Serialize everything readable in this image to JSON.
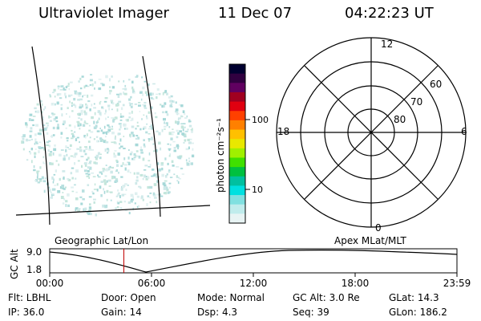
{
  "header": {
    "title": "Ultraviolet Imager",
    "date": "11 Dec 07",
    "time": "04:22:23 UT"
  },
  "colorbar": {
    "label": "photon cm⁻²s⁻¹",
    "ticks": [
      "100",
      "10"
    ],
    "colors": [
      "#000030",
      "#300040",
      "#600060",
      "#a00020",
      "#e00010",
      "#ff4000",
      "#ff8000",
      "#ffc000",
      "#e8e800",
      "#a0f000",
      "#40e000",
      "#00c040",
      "#00c0a0",
      "#00e0e0",
      "#80e0e0",
      "#c0ecec",
      "#e8f4f4"
    ]
  },
  "polar_plot": {
    "mlt_labels": {
      "top": "12",
      "bottom": "0",
      "left": "18",
      "right": "6"
    },
    "lat_labels": [
      "60",
      "70",
      "80"
    ]
  },
  "map_labels": {
    "left": "Geographic Lat/Lon",
    "right": "Apex MLat/MLT"
  },
  "altitude_strip": {
    "ylabel": "GC Alt",
    "y_ticks": [
      "9.0",
      "1.8"
    ],
    "x_ticks": [
      "00:00",
      "06:00",
      "12:00",
      "18:00",
      "23:59"
    ],
    "current_time_marker_hours": 4.37
  },
  "info": {
    "row1": [
      {
        "key": "flt",
        "text": "Flt: LBHL"
      },
      {
        "key": "door",
        "text": "Door: Open"
      },
      {
        "key": "mode",
        "text": "Mode: Normal"
      },
      {
        "key": "gcalt",
        "text": "GC Alt: 3.0 Re"
      },
      {
        "key": "glat",
        "text": "GLat:  14.3"
      }
    ],
    "row2": [
      {
        "key": "ip",
        "text": "IP: 36.0"
      },
      {
        "key": "gain",
        "text": "Gain: 14"
      },
      {
        "key": "dsp",
        "text": "Dsp:    4.3"
      },
      {
        "key": "seq",
        "text": "Seq: 39"
      },
      {
        "key": "glon",
        "text": "GLon: 186.2"
      }
    ]
  }
}
